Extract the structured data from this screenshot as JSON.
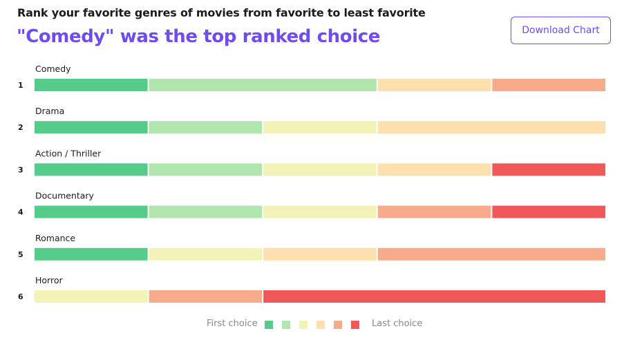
{
  "header": {
    "question": "Rank your favorite genres of movies from favorite to least favorite",
    "headline": "\"Comedy\" was the top ranked choice",
    "download_label": "Download Chart"
  },
  "legend": {
    "first_label": "First choice",
    "last_label": "Last choice"
  },
  "colors": {
    "choice_1": "#56cc8a",
    "choice_2": "#b0e5ae",
    "choice_3": "#f3f3b8",
    "choice_4": "#fde0ad",
    "choice_5": "#f7ab8a",
    "choice_6": "#ef5959",
    "accent": "#6f4cf0"
  },
  "chart_data": {
    "type": "bar",
    "stacked": true,
    "orientation": "horizontal",
    "normalized": true,
    "title": "Rank your favorite genres of movies from favorite to least favorite",
    "subtitle": "\"Comedy\" was the top ranked choice",
    "legend_position": "bottom",
    "series_order": [
      "First choice",
      "",
      "",
      "",
      "",
      "Last choice"
    ],
    "rows": [
      {
        "rank": "1",
        "label": "Comedy",
        "segments": [
          1,
          2,
          0,
          1,
          1,
          0
        ]
      },
      {
        "rank": "2",
        "label": "Drama",
        "segments": [
          1,
          1,
          1,
          2,
          0,
          0
        ]
      },
      {
        "rank": "3",
        "label": "Action / Thriller",
        "segments": [
          1,
          1,
          1,
          1,
          0,
          1
        ]
      },
      {
        "rank": "4",
        "label": "Documentary",
        "segments": [
          1,
          1,
          1,
          0,
          1,
          1
        ]
      },
      {
        "rank": "5",
        "label": "Romance",
        "segments": [
          1,
          0,
          1,
          1,
          2,
          0
        ]
      },
      {
        "rank": "6",
        "label": "Horror",
        "segments": [
          0,
          0,
          1,
          0,
          1,
          3
        ]
      }
    ]
  }
}
